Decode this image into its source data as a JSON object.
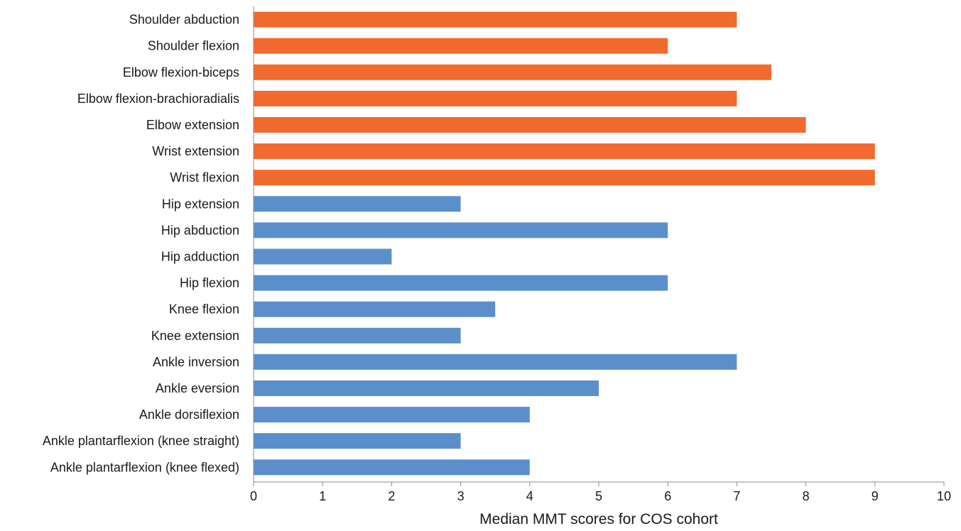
{
  "chart_data": {
    "type": "bar",
    "orientation": "horizontal",
    "title": "",
    "xlabel": "Median MMT scores for COS cohort",
    "ylabel": "",
    "xlim": [
      0,
      10
    ],
    "xticks": [
      0,
      1,
      2,
      3,
      4,
      5,
      6,
      7,
      8,
      9,
      10
    ],
    "grid": false,
    "legend": "none",
    "categories": [
      "Shoulder abduction",
      "Shoulder flexion",
      "Elbow flexion-biceps",
      "Elbow flexion-brachioradialis",
      "Elbow extension",
      "Wrist extension",
      "Wrist flexion",
      "Hip extension",
      "Hip abduction",
      "Hip adduction",
      "Hip flexion",
      "Knee flexion",
      "Knee extension",
      "Ankle inversion",
      "Ankle eversion",
      "Ankle dorsiflexion",
      "Ankle plantarflexion (knee straight)",
      "Ankle plantarflexion (knee flexed)"
    ],
    "values": [
      7,
      6,
      7.5,
      7,
      8,
      9,
      9,
      3,
      6,
      2,
      6,
      3.5,
      3,
      7,
      5,
      4,
      3,
      4
    ],
    "bar_colors": [
      "#F26A2E",
      "#F26A2E",
      "#F26A2E",
      "#F26A2E",
      "#F26A2E",
      "#F26A2E",
      "#F26A2E",
      "#5B8FCC",
      "#5B8FCC",
      "#5B8FCC",
      "#5B8FCC",
      "#5B8FCC",
      "#5B8FCC",
      "#5B8FCC",
      "#5B8FCC",
      "#5B8FCC",
      "#5B8FCC",
      "#5B8FCC"
    ]
  }
}
